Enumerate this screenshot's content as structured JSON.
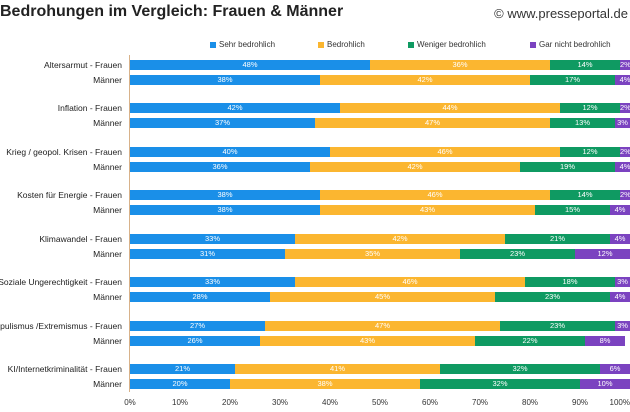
{
  "title": "Bedrohungen im Vergleich: Frauen & Männer",
  "watermark": "© www.presseportal.de",
  "chart_data": {
    "type": "bar",
    "orientation": "horizontal",
    "stacked": true,
    "title": "Bedrohungen im Vergleich: Frauen & Männer",
    "xlim": [
      0,
      100
    ],
    "xticks": [
      "0%",
      "10%",
      "20%",
      "30%",
      "40%",
      "50%",
      "60%",
      "70%",
      "80%",
      "90%",
      "100%"
    ],
    "legend_position": "top",
    "categories": [
      "Altersarmut - Frauen",
      "Männer",
      "Inflation - Frauen",
      "Männer",
      "Krieg / geopol. Krisen - Frauen",
      "Männer",
      "Kosten für Energie - Frauen",
      "Männer",
      "Klimawandel - Frauen",
      "Männer",
      "Soziale Ungerechtigkeit - Frauen",
      "Männer",
      "Populismus /Extremismus - Frauen",
      "Männer",
      "KI/Internetkriminalität - Frauen",
      "Männer"
    ],
    "series": [
      {
        "name": "Sehr bedrohlich",
        "color": "#1a8fe8",
        "values": [
          48,
          38,
          42,
          37,
          40,
          36,
          38,
          38,
          33,
          31,
          33,
          28,
          27,
          26,
          21,
          20
        ]
      },
      {
        "name": "Bedrohlich",
        "color": "#fbb630",
        "values": [
          36,
          42,
          44,
          47,
          46,
          42,
          46,
          43,
          42,
          35,
          46,
          45,
          47,
          43,
          41,
          38
        ]
      },
      {
        "name": "Weniger bedrohlich",
        "color": "#0f9a62",
        "values": [
          14,
          17,
          12,
          13,
          12,
          19,
          14,
          15,
          21,
          23,
          18,
          23,
          23,
          22,
          32,
          32
        ]
      },
      {
        "name": "Gar nicht bedrohlich",
        "color": "#7b43c0",
        "values": [
          2,
          4,
          2,
          3,
          2,
          4,
          2,
          4,
          4,
          12,
          3,
          4,
          3,
          8,
          6,
          10
        ]
      }
    ]
  }
}
